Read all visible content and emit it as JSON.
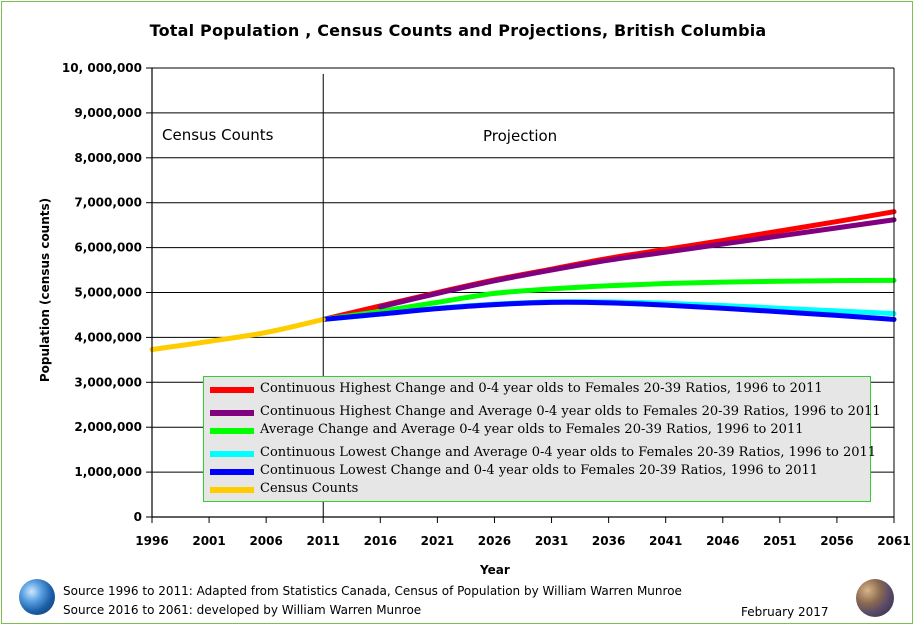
{
  "chart_data": {
    "type": "line",
    "title": "Total Population , Census Counts  and Projections, British Columbia",
    "xlabel": "Year",
    "ylabel": "Population (census counts)",
    "xlim": [
      1996,
      2061
    ],
    "ylim": [
      0,
      10000000
    ],
    "x_ticks": [
      "1996",
      "2001",
      "2006",
      "2011",
      "2016",
      "2021",
      "2026",
      "2031",
      "2036",
      "2041",
      "2046",
      "2051",
      "2056",
      "2061"
    ],
    "y_ticks": [
      "0",
      "1,000,000",
      "2,000,000",
      "3,000,000",
      "4,000,000",
      "5,000,000",
      "6,000,000",
      "7,000,000",
      "8,000,000",
      "9,000,000",
      "10, 000,000"
    ],
    "y_tick_values": [
      0,
      1000000,
      2000000,
      3000000,
      4000000,
      5000000,
      6000000,
      7000000,
      8000000,
      9000000,
      10000000
    ],
    "grid": "horizontal",
    "divider_x": 2011,
    "annotations": {
      "left": "Census Counts",
      "right": "Projection"
    },
    "legend_position": "bottom-center",
    "series": [
      {
        "name": "Continuous Highest Change and 0-4 year olds to Females 20-39 Ratios, 1996 to 2011",
        "color": "#ff0000",
        "x": [
          2011,
          2016,
          2021,
          2026,
          2031,
          2036,
          2041,
          2046,
          2051,
          2056,
          2061
        ],
        "y": [
          4400000,
          4700000,
          5000000,
          5280000,
          5520000,
          5760000,
          5960000,
          6160000,
          6370000,
          6580000,
          6800000
        ]
      },
      {
        "name": "Continuous Highest Change and Average 0-4 year olds to Females 20-39 Ratios, 1996 to 2011",
        "color": "#800080",
        "x": [
          2016,
          2021,
          2026,
          2031,
          2036,
          2041,
          2046,
          2051,
          2056,
          2061
        ],
        "y": [
          4680000,
          4980000,
          5260000,
          5500000,
          5720000,
          5900000,
          6080000,
          6260000,
          6440000,
          6620000
        ]
      },
      {
        "name": "Average Change and Average 0-4 year olds to Females 20-39 Ratios, 1996 to 2011",
        "color": "#00ff00",
        "x": [
          2011,
          2016,
          2021,
          2026,
          2031,
          2036,
          2041,
          2046,
          2051,
          2056,
          2061
        ],
        "y": [
          4400000,
          4580000,
          4780000,
          4980000,
          5080000,
          5150000,
          5200000,
          5230000,
          5250000,
          5265000,
          5270000
        ]
      },
      {
        "name": "Continuous Lowest Change and Average 0-4 year olds to Females 20-39 Ratios, 1996 to 2011",
        "color": "#00ffff",
        "x": [
          2011,
          2016,
          2021,
          2026,
          2031,
          2036,
          2041,
          2046,
          2051,
          2056,
          2061
        ],
        "y": [
          4400000,
          4520000,
          4650000,
          4740000,
          4790000,
          4790000,
          4760000,
          4710000,
          4650000,
          4590000,
          4530000
        ]
      },
      {
        "name": "Continuous Lowest Change and 0-4 year olds to Females 20-39 Ratios, 1996 to 2011",
        "color": "#0000ff",
        "x": [
          2011,
          2016,
          2021,
          2026,
          2031,
          2036,
          2041,
          2046,
          2051,
          2056,
          2061
        ],
        "y": [
          4400000,
          4520000,
          4640000,
          4730000,
          4780000,
          4770000,
          4720000,
          4650000,
          4570000,
          4490000,
          4400000
        ]
      },
      {
        "name": "Census Counts",
        "color": "#ffcc00",
        "x": [
          1996,
          2001,
          2006,
          2011
        ],
        "y": [
          3730000,
          3910000,
          4110000,
          4400000
        ]
      }
    ]
  },
  "footer": {
    "source1": "Source 1996 to 2011: Adapted from Statistics Canada, Census of Population by William Warren Munroe",
    "source2": "Source 2016 to 2061: developed by William Warren Munroe",
    "date": "February 2017"
  },
  "icons": {
    "left": "globe-icon",
    "right": "faces-collage-icon"
  }
}
